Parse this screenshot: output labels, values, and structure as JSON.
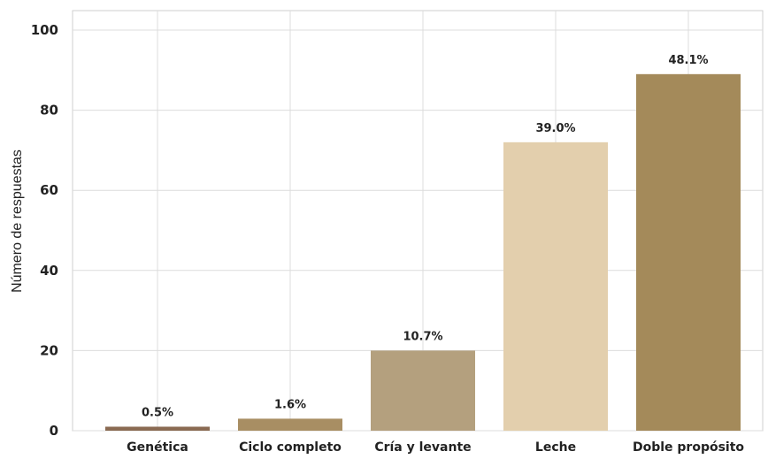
{
  "chart_data": {
    "type": "bar",
    "title": "",
    "xlabel": "",
    "ylabel": "Número de respuestas",
    "ylim": [
      0,
      100
    ],
    "yticks": [
      0,
      20,
      40,
      60,
      80,
      100
    ],
    "grid": true,
    "categories": [
      "Genética",
      "Ciclo completo",
      "Cría y levante",
      "Leche",
      "Doble propósito"
    ],
    "values": [
      1,
      3,
      20,
      72,
      89
    ],
    "labels": [
      "0.5%",
      "1.6%",
      "10.7%",
      "39.0%",
      "48.1%"
    ],
    "colors": [
      "#8a6a52",
      "#a88e63",
      "#b4a07e",
      "#e3cfad",
      "#a48a5a"
    ]
  }
}
